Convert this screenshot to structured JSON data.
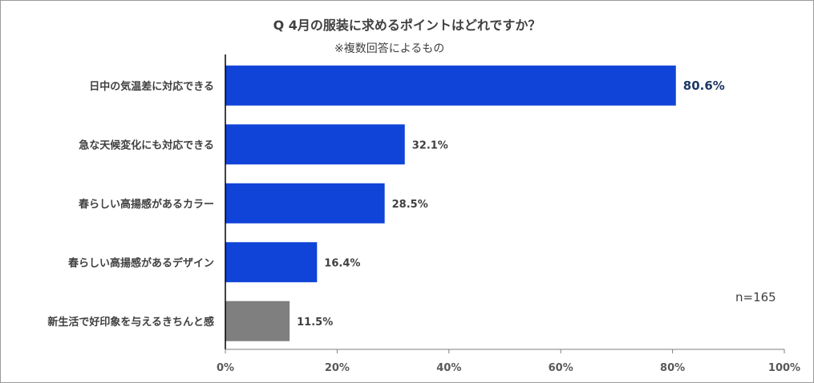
{
  "title": "Q 4月の服装に求めるポイントはどれですか？",
  "subtitle": "※複数回答によるもの",
  "sample_size": "n=165",
  "colors": {
    "primary_bar": "#1043d8",
    "other_bar": "#7f7f7f",
    "highlight_label": "#1f3864"
  },
  "chart_data": {
    "type": "bar",
    "orientation": "horizontal",
    "title": "Q 4月の服装に求めるポイントはどれですか？",
    "categories": [
      "日中の気温差に対応できる",
      "急な天候変化にも対応できる",
      "春らしい高揚感があるカラー",
      "春らしい高揚感があるデザイン",
      "新生活で好印象を与えるきちんと感"
    ],
    "values": [
      80.6,
      32.1,
      28.5,
      16.4,
      11.5
    ],
    "value_labels": [
      "80.6%",
      "32.1%",
      "28.5%",
      "16.4%",
      "11.5%"
    ],
    "bar_colors": [
      "#1043d8",
      "#1043d8",
      "#1043d8",
      "#1043d8",
      "#7f7f7f"
    ],
    "xlim": [
      0,
      100
    ],
    "x_ticks": [
      0,
      20,
      40,
      60,
      80,
      100
    ],
    "x_tick_labels": [
      "0%",
      "20%",
      "40%",
      "60%",
      "80%",
      "100%"
    ],
    "grid": false,
    "legend": "none"
  }
}
